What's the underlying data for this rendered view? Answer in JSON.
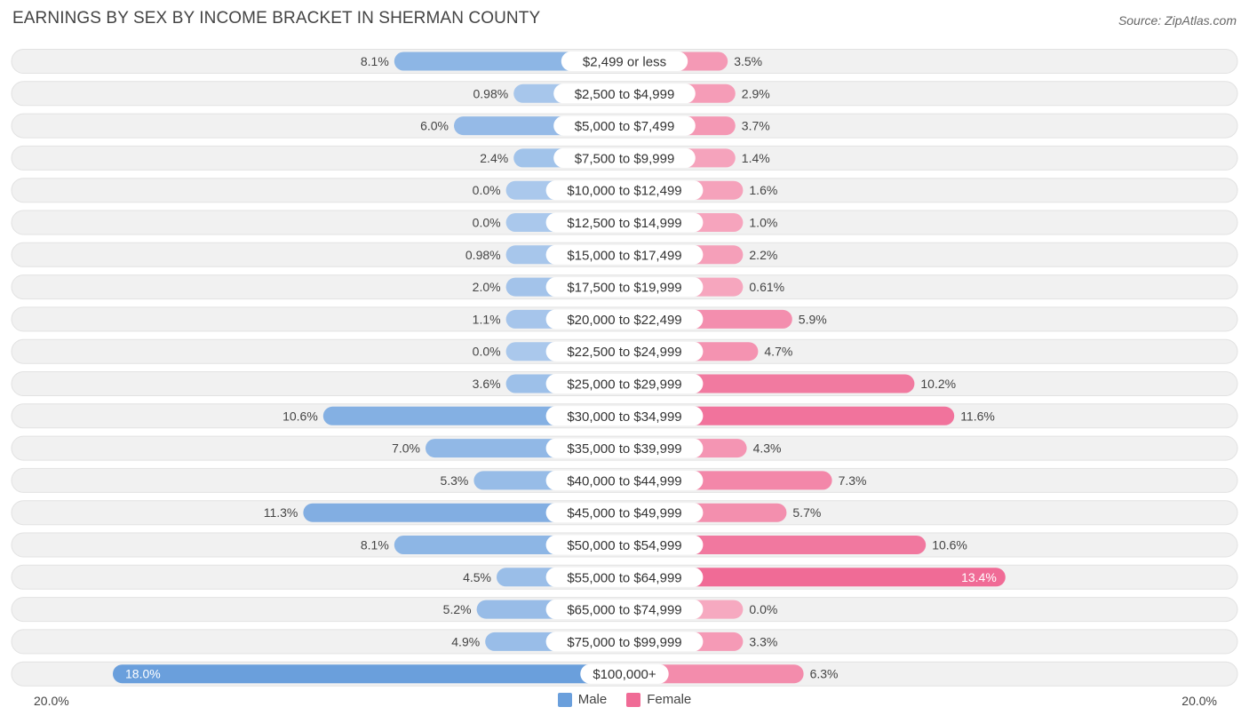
{
  "header": {
    "title": "EARNINGS BY SEX BY INCOME BRACKET IN SHERMAN COUNTY",
    "source": "Source: ZipAtlas.com"
  },
  "colors": {
    "male_dark": "#6a9fdc",
    "male_light": "#aac8ec",
    "female_dark": "#f06b96",
    "female_light": "#f6a9c0",
    "row_bg": "#f1f1f1",
    "row_border": "#e2e2e2"
  },
  "chart_data": {
    "type": "bar",
    "orientation": "horizontal-diverging",
    "title": "EARNINGS BY SEX BY INCOME BRACKET IN SHERMAN COUNTY",
    "axis_min_label": "20.0%",
    "axis_max_label": "20.0%",
    "xlim": [
      -20,
      20
    ],
    "categories": [
      "$2,499 or less",
      "$2,500 to $4,999",
      "$5,000 to $7,499",
      "$7,500 to $9,999",
      "$10,000 to $12,499",
      "$12,500 to $14,999",
      "$15,000 to $17,499",
      "$17,500 to $19,999",
      "$20,000 to $22,499",
      "$22,500 to $24,999",
      "$25,000 to $29,999",
      "$30,000 to $34,999",
      "$35,000 to $39,999",
      "$40,000 to $44,999",
      "$45,000 to $49,999",
      "$50,000 to $54,999",
      "$55,000 to $64,999",
      "$65,000 to $74,999",
      "$75,000 to $99,999",
      "$100,000+"
    ],
    "series": [
      {
        "name": "Male",
        "values": [
          8.1,
          0.98,
          6.0,
          2.4,
          0.0,
          0.0,
          0.98,
          2.0,
          1.1,
          0.0,
          3.6,
          10.6,
          7.0,
          5.3,
          11.3,
          8.1,
          4.5,
          5.2,
          4.9,
          18.0
        ],
        "labels": [
          "8.1%",
          "0.98%",
          "6.0%",
          "2.4%",
          "0.0%",
          "0.0%",
          "0.98%",
          "2.0%",
          "1.1%",
          "0.0%",
          "3.6%",
          "10.6%",
          "7.0%",
          "5.3%",
          "11.3%",
          "8.1%",
          "4.5%",
          "5.2%",
          "4.9%",
          "18.0%"
        ]
      },
      {
        "name": "Female",
        "values": [
          3.5,
          2.9,
          3.7,
          1.4,
          1.6,
          1.0,
          2.2,
          0.61,
          5.9,
          4.7,
          10.2,
          11.6,
          4.3,
          7.3,
          5.7,
          10.6,
          13.4,
          0.0,
          3.3,
          6.3
        ],
        "labels": [
          "3.5%",
          "2.9%",
          "3.7%",
          "1.4%",
          "1.6%",
          "1.0%",
          "2.2%",
          "0.61%",
          "5.9%",
          "4.7%",
          "10.2%",
          "11.6%",
          "4.3%",
          "7.3%",
          "5.7%",
          "10.6%",
          "13.4%",
          "0.0%",
          "3.3%",
          "6.3%"
        ]
      }
    ],
    "legend": [
      "Male",
      "Female"
    ],
    "legend_position": "bottom-center"
  }
}
